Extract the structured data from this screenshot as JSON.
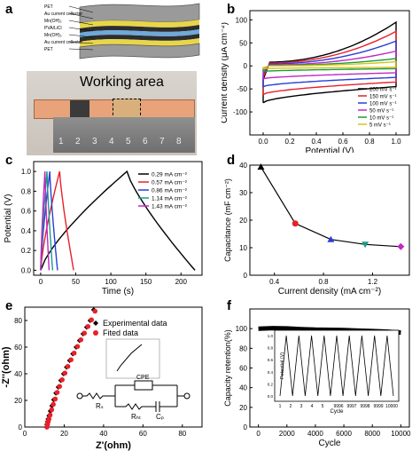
{
  "panels": {
    "a": {
      "label": "a",
      "layer_labels": [
        "PET",
        "Au current collector",
        "Mn(OH)₂",
        "PVA/LiCl",
        "Mn(OH)₂",
        "Au current collector",
        "PET"
      ],
      "photo_title": "Working area",
      "ruler_numbers": [
        "1",
        "2",
        "3",
        "4",
        "5",
        "6",
        "7",
        "8"
      ]
    },
    "b": {
      "label": "b"
    },
    "c": {
      "label": "c"
    },
    "d": {
      "label": "d"
    },
    "e": {
      "label": "e",
      "legend": [
        "Experimental data",
        "Fited data"
      ],
      "circuit_labels": [
        "Rₛ",
        "Rₕₜ",
        "CPE",
        "Cₚ"
      ]
    },
    "f": {
      "label": "f",
      "inset_x_left": [
        "1",
        "2",
        "3",
        "4",
        "5"
      ],
      "inset_x_right": [
        "9996",
        "9997",
        "9998",
        "9999",
        "10000"
      ],
      "inset_xlabel": "Cycle",
      "inset_ylabel": "Potential (V)",
      "inset_yticks": [
        "0.0",
        "0.2",
        "0.4",
        "0.6",
        "0.8",
        "1.0"
      ]
    }
  },
  "chart_data": [
    {
      "id": "b",
      "type": "line",
      "xlabel": "Potential (V)",
      "ylabel": "Current density (μA cm⁻²)",
      "xlim": [
        -0.1,
        1.1
      ],
      "ylim": [
        -150,
        120
      ],
      "xticks": [
        0.0,
        0.2,
        0.4,
        0.6,
        0.8,
        1.0
      ],
      "yticks": [
        -100,
        -50,
        0,
        50,
        100
      ],
      "legend": "bottom-right",
      "series": [
        {
          "name": "200 mV s⁻¹",
          "color": "#000000",
          "top": [
            8,
            95
          ],
          "bottom": [
            -80,
            -45
          ]
        },
        {
          "name": "150 mV s⁻¹",
          "color": "#e8202a",
          "top": [
            6,
            75
          ],
          "bottom": [
            -62,
            -35
          ]
        },
        {
          "name": "100 mV s⁻¹",
          "color": "#2a3dd8",
          "top": [
            4,
            54
          ],
          "bottom": [
            -45,
            -25
          ]
        },
        {
          "name": "50 mV s⁻¹",
          "color": "#c128c6",
          "top": [
            2,
            32
          ],
          "bottom": [
            -28,
            -15
          ]
        },
        {
          "name": "10 mV s⁻¹",
          "color": "#1a9c3a",
          "top": [
            1,
            16
          ],
          "bottom": [
            -12,
            -6
          ]
        },
        {
          "name": "5 mV s⁻¹",
          "color": "#d8c217",
          "top": [
            0,
            9
          ],
          "bottom": [
            -6,
            -3
          ]
        }
      ]
    },
    {
      "id": "c",
      "type": "line",
      "xlabel": "Time (s)",
      "ylabel": "Potential (V)",
      "xlim": [
        -10,
        230
      ],
      "ylim": [
        -0.05,
        1.1
      ],
      "xticks": [
        0,
        50,
        100,
        150,
        200
      ],
      "yticks": [
        0.0,
        0.2,
        0.4,
        0.6,
        0.8,
        1.0
      ],
      "legend": "top-right",
      "series": [
        {
          "name": "0.29 mA cm⁻²",
          "color": "#000000",
          "charge_end": 123,
          "discharge_end": 220
        },
        {
          "name": "0.57 mA cm⁻²",
          "color": "#e8202a",
          "charge_end": 27,
          "discharge_end": 47
        },
        {
          "name": "0.86 mA cm⁻²",
          "color": "#2a3dd8",
          "charge_end": 13,
          "discharge_end": 24
        },
        {
          "name": "1.14 mA cm⁻²",
          "color": "#1a9c8a",
          "charge_end": 9,
          "discharge_end": 17
        },
        {
          "name": "1.43 mA cm⁻²",
          "color": "#c128c6",
          "charge_end": 6,
          "discharge_end": 12
        }
      ]
    },
    {
      "id": "d",
      "type": "line",
      "xlabel": "Current density (mA cm⁻²)",
      "ylabel": "Capacitance (mF cm⁻²)",
      "xlim": [
        0.2,
        1.5
      ],
      "ylim": [
        0,
        40
      ],
      "xticks": [
        0.4,
        0.8,
        1.2
      ],
      "yticks": [
        0,
        10,
        20,
        30,
        40
      ],
      "x": [
        0.29,
        0.57,
        0.86,
        1.14,
        1.43
      ],
      "y": [
        39.3,
        18.8,
        13.0,
        11.2,
        10.4
      ],
      "colors": [
        "#000000",
        "#e8202a",
        "#2a3dd8",
        "#1a9c8a",
        "#c128c6"
      ]
    },
    {
      "id": "e",
      "type": "scatter",
      "xlabel": "Z'(ohm)",
      "ylabel": "-Z''(ohm)",
      "xlim": [
        0,
        90
      ],
      "ylim": [
        0,
        90
      ],
      "xticks": [
        0,
        20,
        40,
        60,
        80
      ],
      "yticks": [
        0,
        20,
        40,
        60,
        80
      ],
      "series": [
        {
          "name": "Experimental data",
          "color": "#000000",
          "x": [
            11.0,
            11.2,
            11.5,
            11.8,
            12.3,
            13.0,
            13.8,
            14.7,
            15.8,
            17.0,
            18.3,
            19.7,
            21.2,
            22.8,
            24.4,
            26.1,
            27.8,
            29.6,
            31.4,
            33.2,
            35.0
          ],
          "y": [
            0,
            2,
            4,
            6,
            8.5,
            12,
            16,
            20.5,
            25.5,
            30,
            35,
            40,
            45,
            50,
            55,
            60,
            65,
            70,
            75,
            80,
            88
          ]
        },
        {
          "name": "Fited data",
          "color": "#e8202a",
          "x": [
            10.8,
            11.1,
            11.4,
            11.8,
            12.4,
            13.2,
            14.0,
            15.0,
            16.0,
            17.2,
            18.5,
            19.9,
            21.4,
            23.0,
            24.6,
            26.3,
            28.0,
            29.8,
            31.6,
            33.4,
            35.2
          ],
          "y": [
            0,
            2,
            4,
            6,
            9,
            13,
            17,
            21,
            26,
            30.5,
            35.5,
            40.5,
            45.5,
            50.5,
            55.5,
            60.5,
            65.5,
            70.5,
            75.5,
            80.5,
            87
          ]
        }
      ]
    },
    {
      "id": "f",
      "type": "line",
      "xlabel": "Cycle",
      "ylabel": "Capacity retention(%)",
      "xlim": [
        -600,
        10600
      ],
      "ylim": [
        0,
        120
      ],
      "xticks": [
        0,
        2000,
        4000,
        6000,
        8000,
        10000
      ],
      "yticks": [
        0,
        20,
        40,
        60,
        80,
        100
      ],
      "x": [
        0,
        1000,
        2000,
        3000,
        4000,
        5000,
        6000,
        7000,
        8000,
        9000,
        10000
      ],
      "y": [
        100,
        100.5,
        100.2,
        99.5,
        99.0,
        98.8,
        98.5,
        98.0,
        97.5,
        97.0,
        96.0
      ]
    }
  ]
}
